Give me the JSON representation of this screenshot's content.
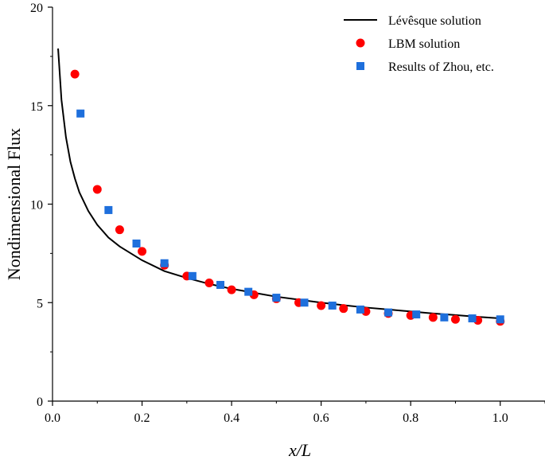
{
  "chart_data": {
    "type": "scatter",
    "title": "",
    "xlabel": "x/L",
    "ylabel": "Nondimensional Flux",
    "xlim": [
      0,
      1.1
    ],
    "ylim": [
      0,
      20
    ],
    "x_ticks": [
      0,
      0.2,
      0.4,
      0.6,
      0.8,
      1.0
    ],
    "x_tick_labels": [
      "0.0",
      "0.2",
      "0.4",
      "0.6",
      "0.8",
      "1.0"
    ],
    "y_ticks": [
      0,
      5,
      10,
      15,
      20
    ],
    "y_tick_labels": [
      "0",
      "5",
      "10",
      "15",
      "20"
    ],
    "grid": false,
    "legend_position": "top-right",
    "series": [
      {
        "name": "Lévêsque solution",
        "kind": "line",
        "color": "#000000",
        "x": [
          0.0125,
          0.02,
          0.03,
          0.04,
          0.05,
          0.06,
          0.08,
          0.1,
          0.125,
          0.15,
          0.2,
          0.25,
          0.3,
          0.35,
          0.4,
          0.45,
          0.5,
          0.55,
          0.6,
          0.65,
          0.7,
          0.75,
          0.8,
          0.85,
          0.9,
          0.95,
          1.0
        ],
        "y": [
          17.9,
          15.3,
          13.4,
          12.15,
          11.3,
          10.6,
          9.65,
          8.95,
          8.3,
          7.85,
          7.15,
          6.6,
          6.25,
          5.95,
          5.7,
          5.5,
          5.3,
          5.15,
          5.0,
          4.87,
          4.75,
          4.65,
          4.55,
          4.45,
          4.37,
          4.28,
          4.2
        ]
      },
      {
        "name": "LBM solution",
        "kind": "circle",
        "color": "#ff0000",
        "x": [
          0.05,
          0.1,
          0.15,
          0.2,
          0.25,
          0.3,
          0.35,
          0.4,
          0.45,
          0.5,
          0.55,
          0.6,
          0.65,
          0.7,
          0.75,
          0.8,
          0.85,
          0.9,
          0.95,
          1.0
        ],
        "y": [
          16.6,
          10.75,
          8.7,
          7.6,
          6.9,
          6.35,
          6.0,
          5.65,
          5.4,
          5.2,
          5.0,
          4.85,
          4.7,
          4.55,
          4.45,
          4.35,
          4.25,
          4.15,
          4.1,
          4.05
        ]
      },
      {
        "name": "Results of Zhou, etc.",
        "kind": "square",
        "color": "#1e6fdc",
        "x": [
          0.0625,
          0.125,
          0.1875,
          0.25,
          0.3125,
          0.375,
          0.4375,
          0.5,
          0.5625,
          0.625,
          0.6875,
          0.75,
          0.8125,
          0.875,
          0.9375,
          1.0
        ],
        "y": [
          14.6,
          9.7,
          8.0,
          7.0,
          6.35,
          5.9,
          5.55,
          5.25,
          5.0,
          4.85,
          4.65,
          4.5,
          4.4,
          4.25,
          4.2,
          4.15
        ]
      }
    ]
  }
}
